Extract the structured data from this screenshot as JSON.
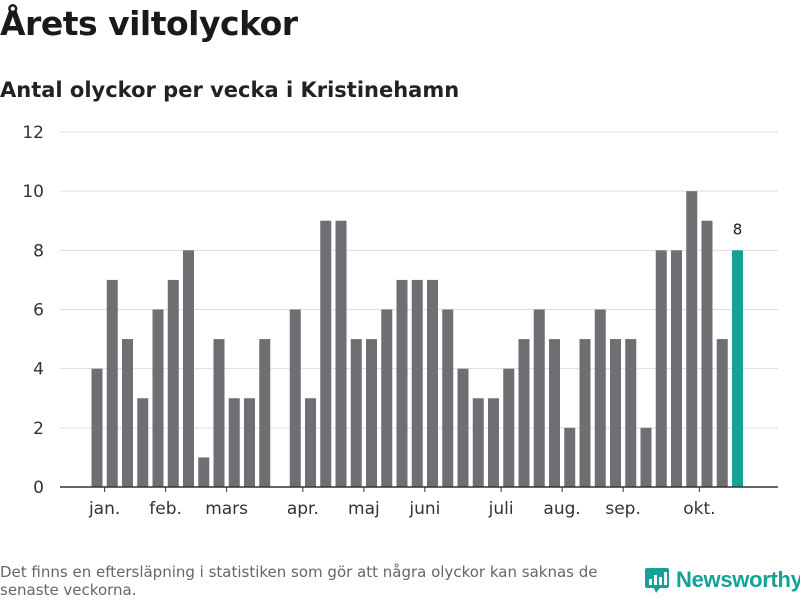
{
  "title": "Årets viltolyckor",
  "subtitle": "Antal olyckor per vecka i Kristinehamn",
  "footer": {
    "note": "Det finns en eftersläpning i statistiken som gör att några olyckor kan saknas de senaste veckorna.",
    "brand": "Newsworthy",
    "brand_icon": "newsworthy-chart-logo-icon"
  },
  "colors": {
    "bar": "#6f6e73",
    "highlight": "#16a196",
    "grid": "#dddddd",
    "axis": "#333333"
  },
  "chart_data": {
    "type": "bar",
    "title": "Årets viltolyckor",
    "subtitle": "Antal olyckor per vecka i Kristinehamn",
    "xlabel": "",
    "ylabel": "",
    "ylim": [
      0,
      12
    ],
    "yticks": [
      0,
      2,
      4,
      6,
      8,
      10,
      12
    ],
    "grid": true,
    "x": [
      1,
      2,
      3,
      4,
      5,
      6,
      7,
      8,
      9,
      10,
      11,
      12,
      13,
      14,
      15,
      16,
      17,
      18,
      19,
      20,
      21,
      22,
      23,
      24,
      25,
      26,
      27,
      28,
      29,
      30,
      31,
      32,
      33,
      34,
      35,
      36,
      37,
      38,
      39,
      40,
      41,
      42,
      43,
      44
    ],
    "values": [
      4,
      7,
      5,
      3,
      6,
      7,
      8,
      1,
      5,
      3,
      3,
      5,
      0,
      6,
      3,
      9,
      9,
      5,
      5,
      6,
      7,
      7,
      7,
      6,
      4,
      3,
      3,
      4,
      5,
      6,
      5,
      2,
      5,
      6,
      5,
      5,
      2,
      8,
      8,
      10,
      9,
      5,
      8,
      null
    ],
    "highlight_index": 42,
    "highlight_label": "8",
    "month_labels": [
      {
        "label": "jan.",
        "x": 1.5
      },
      {
        "label": "feb.",
        "x": 5.5
      },
      {
        "label": "mars",
        "x": 9.5
      },
      {
        "label": "apr.",
        "x": 14.5
      },
      {
        "label": "maj",
        "x": 18.5
      },
      {
        "label": "juni",
        "x": 22.5
      },
      {
        "label": "juli",
        "x": 27.5
      },
      {
        "label": "aug.",
        "x": 31.5
      },
      {
        "label": "sep.",
        "x": 35.5
      },
      {
        "label": "okt.",
        "x": 40.5
      }
    ]
  }
}
